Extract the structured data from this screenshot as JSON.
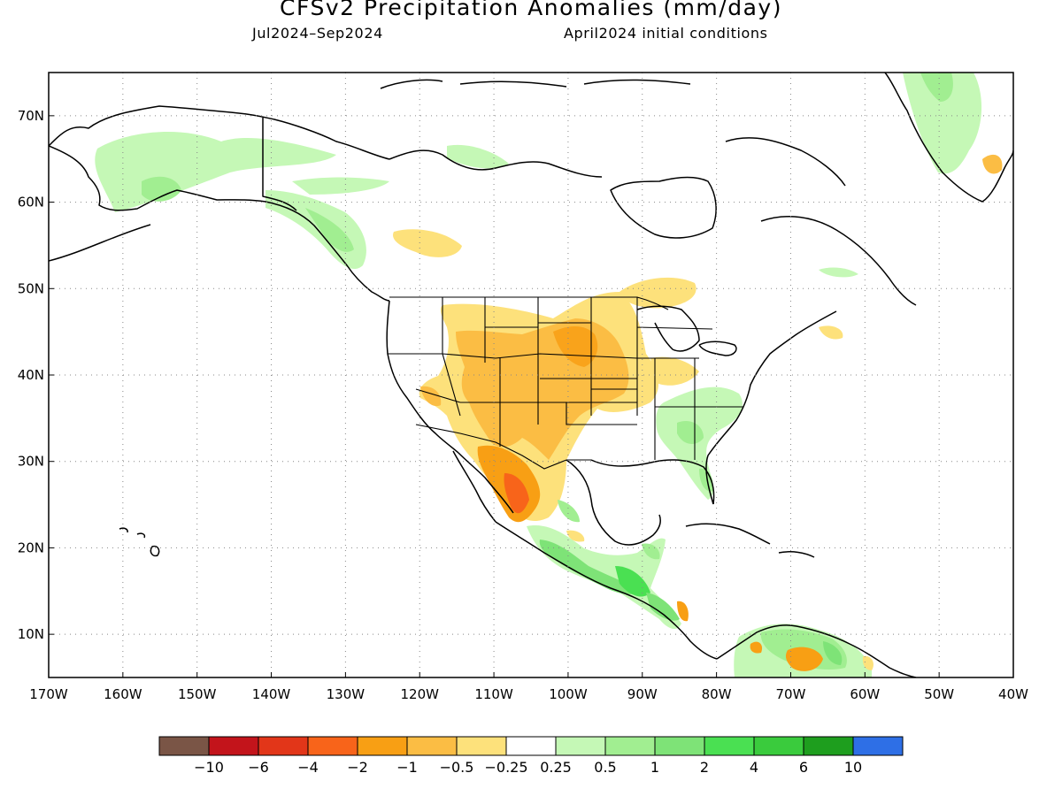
{
  "header": {
    "title": "CFSv2 Precipitation Anomalies (mm/day)",
    "period": "Jul2024–Sep2024",
    "initial_conditions": "April2024 initial conditions"
  },
  "map": {
    "region": "North America",
    "lon_range": [
      -170,
      -40
    ],
    "lat_range": [
      5,
      75
    ],
    "grid": true,
    "lat_labels": [
      "10N",
      "20N",
      "30N",
      "40N",
      "50N",
      "60N",
      "70N"
    ],
    "lon_labels": [
      "170W",
      "160W",
      "150W",
      "140W",
      "130W",
      "120W",
      "110W",
      "100W",
      "90W",
      "80W",
      "70W",
      "60W",
      "50W",
      "40W"
    ],
    "anomaly_regions": [
      {
        "area": "Southwest US / northwest Mexico",
        "sign": "dry",
        "max_category": "-2"
      },
      {
        "area": "Northern Plains / Upper Midwest",
        "sign": "dry",
        "max_category": "-1"
      },
      {
        "area": "Southeastern US",
        "sign": "wet",
        "max_category": "0.5"
      },
      {
        "area": "Southern Mexico / Central America",
        "sign": "wet",
        "max_category": "4"
      },
      {
        "area": "Alaska / Yukon",
        "sign": "wet",
        "max_category": "0.5"
      },
      {
        "area": "Greenland east coast",
        "sign": "wet",
        "max_category": "1"
      },
      {
        "area": "Northern South America",
        "sign": "mixed",
        "max_category": "2"
      }
    ]
  },
  "colorbar": {
    "colors": [
      "#7a5546",
      "#c3141b",
      "#e23619",
      "#f8641a",
      "#f89f14",
      "#fbbd44",
      "#fde17b",
      "#ffffff",
      "#c5f8b6",
      "#a1ee91",
      "#7ee377",
      "#4ae052",
      "#3acb3d",
      "#1e9e1e",
      "#2e6fe6"
    ],
    "labels": [
      "−10",
      "−6",
      "−4",
      "−2",
      "−1",
      "−0.5",
      "−0.25",
      "0.25",
      "0.5",
      "1",
      "2",
      "4",
      "6",
      "10"
    ]
  }
}
